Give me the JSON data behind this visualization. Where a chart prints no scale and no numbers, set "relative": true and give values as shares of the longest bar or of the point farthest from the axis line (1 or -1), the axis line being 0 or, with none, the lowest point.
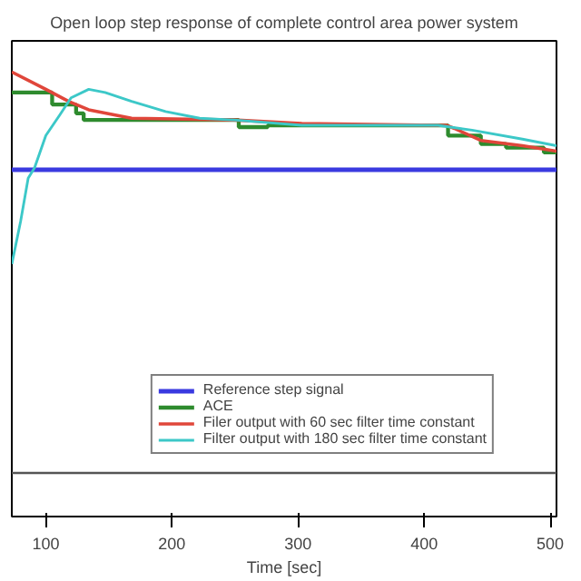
{
  "chart_data": {
    "type": "line",
    "title": "Open loop step response of complete control area power system",
    "xlabel": "Time [sec]",
    "relative": true,
    "xlim": [
      73,
      505
    ],
    "xticks": [
      100,
      200,
      300,
      400,
      500
    ],
    "tick_labels": "x",
    "grid": false,
    "legend": "bottom right",
    "marker": "none",
    "line_style": "solid",
    "series": [
      {
        "name": "Reference step signal",
        "color": "#3a3ae0",
        "x": [
          73,
          505
        ],
        "values": [
          0.78,
          0.78
        ]
      },
      {
        "name": "ACE",
        "color": "#2e8b2e",
        "type": "step",
        "x": [
          73,
          105,
          124,
          130,
          253,
          276,
          419,
          445,
          465,
          495,
          505
        ],
        "values": [
          0.954,
          0.927,
          0.907,
          0.892,
          0.876,
          0.88,
          0.857,
          0.838,
          0.83,
          0.819,
          0.819
        ]
      },
      {
        "name": "Filer output with 60 sec filter time constant",
        "color": "#e0463a",
        "x": [
          73,
          100,
          118,
          134,
          168,
          249,
          303,
          411,
          418,
          424,
          445,
          478,
          505
        ],
        "values": [
          1.0,
          0.961,
          0.934,
          0.915,
          0.896,
          0.892,
          0.884,
          0.88,
          0.88,
          0.873,
          0.846,
          0.834,
          0.822
        ]
      },
      {
        "name": "Filter output with 180 sec filter time constant",
        "color": "#3cc8c8",
        "x": [
          73,
          80,
          86,
          91,
          100,
          111,
          120,
          134,
          147,
          168,
          195,
          222,
          249,
          303,
          411,
          438,
          478,
          505
        ],
        "values": [
          0.568,
          0.664,
          0.761,
          0.784,
          0.857,
          0.903,
          0.942,
          0.961,
          0.954,
          0.934,
          0.911,
          0.896,
          0.892,
          0.88,
          0.88,
          0.869,
          0.849,
          0.834
        ]
      },
      {
        "color": "#555555",
        "x": [
          73,
          505
        ],
        "values": [
          0.098,
          0.098
        ]
      }
    ]
  }
}
